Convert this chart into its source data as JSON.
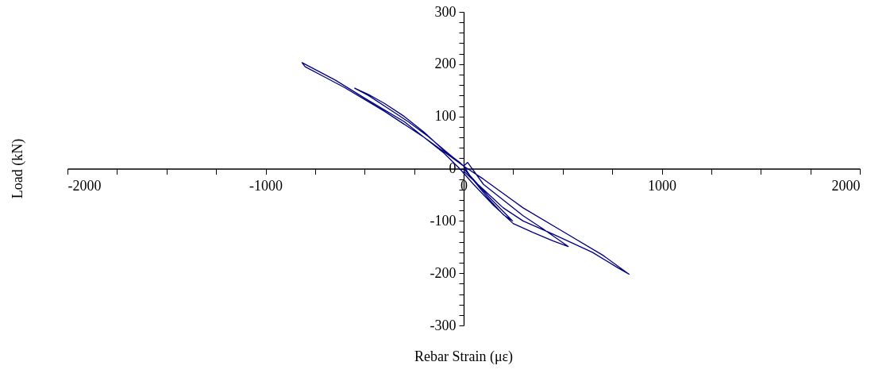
{
  "chart_data": {
    "type": "line",
    "xlabel": "Rebar Strain (με)",
    "ylabel": "Load (kN)",
    "xlim": [
      -2000,
      2000
    ],
    "ylim": [
      -300,
      300
    ],
    "xticks": [
      -2000,
      {
        "value": -1750,
        "label": null
      },
      {
        "value": -1500,
        "label": null
      },
      {
        "value": -1250,
        "label": null
      },
      -1000,
      {
        "value": -750,
        "label": null
      },
      {
        "value": -500,
        "label": null
      },
      {
        "value": -250,
        "label": null
      },
      0,
      {
        "value": 250,
        "label": null
      },
      {
        "value": 500,
        "label": null
      },
      {
        "value": 750,
        "label": null
      },
      1000,
      {
        "value": 1250,
        "label": null
      },
      {
        "value": 1500,
        "label": null
      },
      {
        "value": 1750,
        "label": null
      },
      2000
    ],
    "yticks": [
      -300,
      {
        "value": -280,
        "label": null
      },
      {
        "value": -260,
        "label": null
      },
      {
        "value": -240,
        "label": null
      },
      {
        "value": -220,
        "label": null
      },
      -200,
      {
        "value": -180,
        "label": null
      },
      {
        "value": -160,
        "label": null
      },
      {
        "value": -140,
        "label": null
      },
      {
        "value": -120,
        "label": null
      },
      -100,
      {
        "value": -80,
        "label": null
      },
      {
        "value": -60,
        "label": null
      },
      {
        "value": -40,
        "label": null
      },
      {
        "value": -20,
        "label": null
      },
      0,
      {
        "value": 20,
        "label": null
      },
      {
        "value": 40,
        "label": null
      },
      {
        "value": 60,
        "label": null
      },
      {
        "value": 80,
        "label": null
      },
      100,
      {
        "value": 120,
        "label": null
      },
      {
        "value": 140,
        "label": null
      },
      {
        "value": 160,
        "label": null
      },
      {
        "value": 180,
        "label": null
      },
      200,
      {
        "value": 220,
        "label": null
      },
      {
        "value": 240,
        "label": null
      },
      {
        "value": 260,
        "label": null
      },
      {
        "value": 280,
        "label": null
      },
      300
    ],
    "grid": false,
    "marker": "none",
    "line_style": "solid",
    "series": [
      {
        "color": "#000080",
        "x": [
          0,
          60,
          130,
          200,
          247,
          200,
          120,
          40,
          0,
          -20,
          -100,
          -200,
          -300,
          -400,
          -480,
          -550,
          -480,
          -380,
          -280,
          -180,
          -80,
          0,
          20,
          100,
          200,
          300,
          400,
          528,
          450,
          350,
          250,
          150,
          50,
          -20,
          -100,
          -300,
          -500,
          -650,
          -816,
          -800,
          -700,
          -600,
          -400,
          -200,
          0,
          100,
          300,
          500,
          700,
          835,
          780,
          650,
          450,
          300,
          200,
          100,
          0
        ],
        "values": [
          0,
          -25,
          -55,
          -82,
          -100,
          -88,
          -55,
          -18,
          5,
          12,
          35,
          70,
          100,
          125,
          142,
          154,
          140,
          115,
          90,
          62,
          30,
          5,
          12,
          -30,
          -60,
          -90,
          -115,
          -149,
          -138,
          -122,
          -105,
          -70,
          -30,
          0,
          30,
          90,
          135,
          170,
          203,
          195,
          175,
          155,
          110,
          60,
          5,
          -20,
          -75,
          -120,
          -165,
          -202,
          -190,
          -160,
          -125,
          -100,
          -75,
          -40,
          -5
        ]
      }
    ]
  }
}
